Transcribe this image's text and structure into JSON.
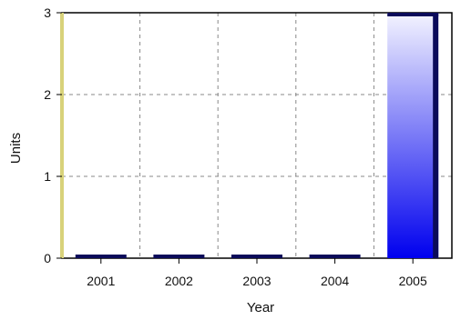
{
  "chart_data": {
    "type": "bar",
    "categories": [
      "2001",
      "2002",
      "2003",
      "2004",
      "2005"
    ],
    "values": [
      0,
      0,
      0,
      0,
      3
    ],
    "xlabel": "Year",
    "ylabel": "Units",
    "ylim": [
      0,
      3
    ],
    "yticks": [
      "0",
      "1",
      "2",
      "3"
    ],
    "grid": true,
    "legend": "none"
  },
  "colors": {
    "bar_top": "#f4f4ff",
    "bar_bottom": "#0000ee",
    "bar_edge": "#0a0a5a",
    "axis": "#000000",
    "left_accent": "#d8d27a",
    "grid": "#888888"
  }
}
